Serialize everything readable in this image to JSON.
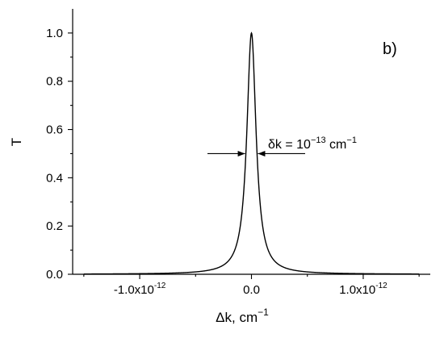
{
  "chart_data": {
    "type": "line",
    "panel_label": "b)",
    "xlabel": "Δk, cm",
    "xlabel_exponent": "−1",
    "ylabel": "T",
    "xlim": [
      -1.6e-12,
      1.6e-12
    ],
    "ylim": [
      0,
      1.1
    ],
    "x_ticks": [
      {
        "value": -1e-12,
        "mantissa": "-1.0x10",
        "exponent": "-12"
      },
      {
        "value": 0.0,
        "mantissa": "0.0",
        "exponent": ""
      },
      {
        "value": 1e-12,
        "mantissa": "1.0x10",
        "exponent": "-12"
      }
    ],
    "x_minor_ticks": [
      -1.5e-12,
      -5e-13,
      5e-13,
      1.5e-12
    ],
    "y_ticks": [
      {
        "value": 0.0,
        "label": "0.0"
      },
      {
        "value": 0.2,
        "label": "0.2"
      },
      {
        "value": 0.4,
        "label": "0.4"
      },
      {
        "value": 0.6,
        "label": "0.6"
      },
      {
        "value": 0.8,
        "label": "0.8"
      },
      {
        "value": 1.0,
        "label": "1.0"
      }
    ],
    "y_minor_ticks": [
      0.1,
      0.3,
      0.5,
      0.7,
      0.9
    ],
    "series": [
      {
        "shape": "lorentzian",
        "center": 0.0,
        "peak": 1.0,
        "fwhm": 1e-13,
        "x_range": [
          -1.5e-12,
          1.5e-12
        ]
      }
    ],
    "annotation": {
      "text_main": "δk = 10",
      "text_exponent": "−13",
      "text_unit": " cm",
      "text_unit_exponent": "−1",
      "level": 0.5,
      "width": 1e-13
    },
    "grid": false,
    "legend": "none"
  }
}
